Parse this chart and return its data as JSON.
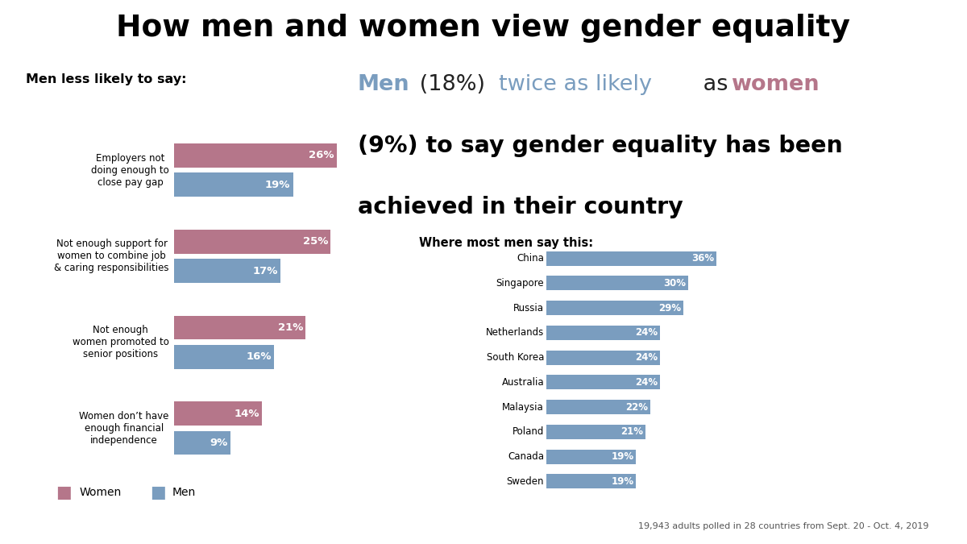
{
  "title": "How men and women view gender equality",
  "bg_color": "#ffffff",
  "left_section_title": "Men less likely to say:",
  "left_categories": [
    "Employers not\ndoing enough to\nclose pay gap",
    "Not enough support for\nwomen to combine job\n& caring responsibilities",
    "Not enough\nwomen promoted to\nsenior positions",
    "Women don’t have\nenough financial\nindependence"
  ],
  "women_values": [
    26,
    25,
    21,
    14
  ],
  "men_values": [
    19,
    17,
    16,
    9
  ],
  "women_color": "#b5768a",
  "men_color": "#7a9dbf",
  "line1_parts": [
    {
      "text": "Men",
      "color": "#7a9dbf",
      "bold": true
    },
    {
      "text": " (18%) ",
      "color": "#222222",
      "bold": false
    },
    {
      "text": "twice as likely",
      "color": "#7a9dbf",
      "bold": false
    },
    {
      "text": " as ",
      "color": "#222222",
      "bold": false
    },
    {
      "text": "women",
      "color": "#b5768a",
      "bold": true
    }
  ],
  "line2": "(9%) to say gender equality has been",
  "line3": "achieved in their country",
  "countries_title": "Where most men say this:",
  "countries": [
    "China",
    "Singapore",
    "Russia",
    "Netherlands",
    "South Korea",
    "Australia",
    "Malaysia",
    "Poland",
    "Canada",
    "Sweden"
  ],
  "country_values": [
    36,
    30,
    29,
    24,
    24,
    24,
    22,
    21,
    19,
    19
  ],
  "country_color": "#7a9dbf",
  "footnote": "19,943 adults polled in 28 countries from Sept. 20 - Oct. 4, 2019",
  "ipsos_bg": "#5b9bd5",
  "legend_women": "Women",
  "legend_men": "Men"
}
